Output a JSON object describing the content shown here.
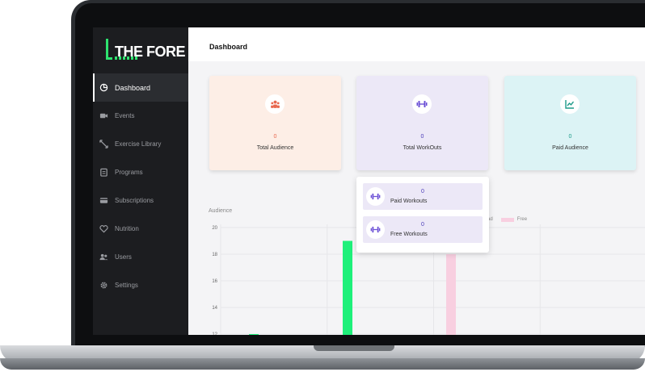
{
  "app": {
    "brand": "THE FORE"
  },
  "sidebar": {
    "items": [
      {
        "label": "Dashboard",
        "icon": "pie-chart-icon",
        "active": true
      },
      {
        "label": "Events",
        "icon": "video-camera-icon",
        "active": false
      },
      {
        "label": "Exercise Library",
        "icon": "expand-arrows-icon",
        "active": false
      },
      {
        "label": "Programs",
        "icon": "clipboard-icon",
        "active": false
      },
      {
        "label": "Subscriptions",
        "icon": "credit-card-icon",
        "active": false
      },
      {
        "label": "Nutrition",
        "icon": "heart-icon",
        "active": false
      },
      {
        "label": "Users",
        "icon": "users-icon",
        "active": false
      },
      {
        "label": "Settings",
        "icon": "gear-icon",
        "active": false
      }
    ]
  },
  "header": {
    "title": "Dashboard"
  },
  "cards": [
    {
      "label": "Total Audience",
      "value": "0",
      "icon": "audience-icon",
      "bg": "#fdeee6",
      "value_color": "#e8684f",
      "icon_color": "#e8684f"
    },
    {
      "label": "Total WorkOuts",
      "value": "0",
      "icon": "dumbbell-icon",
      "bg": "#ece8f7",
      "value_color": "#4a3bb8",
      "icon_color": "#6b4fd6"
    },
    {
      "label": "Paid Audience",
      "value": "0",
      "icon": "trending-chart-icon",
      "bg": "#dcf3f5",
      "value_color": "#1f9b8a",
      "icon_color": "#1f9b8a"
    }
  ],
  "workouts_dropdown": {
    "items": [
      {
        "label": "Paid Workouts",
        "value": "0",
        "icon": "dumbbell-icon"
      },
      {
        "label": "Free Workouts",
        "value": "0",
        "icon": "dumbbell-icon"
      }
    ]
  },
  "chart": {
    "title": "Audience",
    "legend_partial": "ad",
    "legend_free": "Free"
  },
  "chart_data": {
    "type": "bar",
    "title": "Audience",
    "series": [
      {
        "name": "Paid",
        "color": "#1ef07a"
      },
      {
        "name": "Free",
        "color": "#f8cfe0"
      }
    ],
    "bars": [
      {
        "series": "Paid",
        "group": 0,
        "value": 12
      },
      {
        "series": "Paid",
        "group": 1,
        "value": 19
      },
      {
        "series": "Free",
        "group": 2,
        "value": 18
      }
    ],
    "y_ticks": [
      "20",
      "18",
      "16",
      "14",
      "12"
    ],
    "ylim": [
      12,
      20
    ],
    "grid": true,
    "legend_position": "top"
  },
  "colors": {
    "accent": "#2ee36f",
    "sidebar_bg": "#1c1d20"
  }
}
